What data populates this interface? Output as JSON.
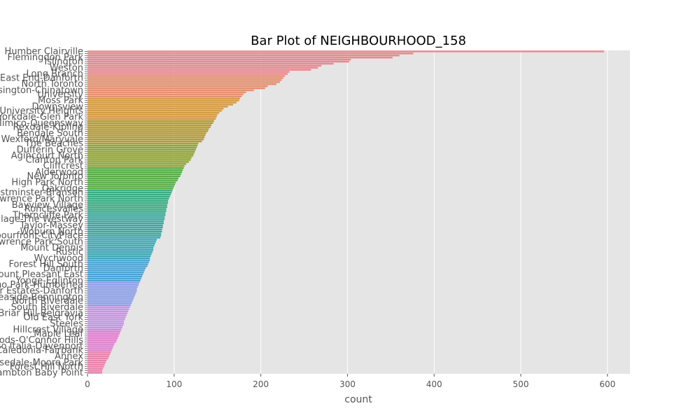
{
  "chart_data": {
    "type": "bar",
    "orientation": "horizontal",
    "title": "Bar Plot of NEIGHBOURHOOD_158",
    "xlabel": "count",
    "ylabel": "",
    "xlim": [
      0,
      626
    ],
    "xticks": [
      0,
      100,
      200,
      300,
      400,
      500,
      600
    ],
    "grid": true,
    "legend": "none",
    "visible_category_labels": [
      "Humber Clairville",
      "Flemingdon Park",
      "Islington",
      "Weston",
      "Long Branch",
      "East End-Danforth",
      "North Toronto",
      "Kensington-Chinatown",
      "University",
      "Moss Park",
      "Downsview",
      "York University Heights",
      "Yorkdale-Glen Park",
      "Mimico-Queensway",
      "Rexdale-Kipling",
      "Bendale South",
      "Wexford/Maryvale",
      "The Beaches",
      "Dufferin Grove",
      "Agincourt North",
      "Clanton Park",
      "Cliffcrest",
      "Alderwood",
      "New Toronto",
      "High Park North",
      "Oakridge",
      "Westminster-Branson",
      "Lawrence Park North",
      "Bayview Village",
      "Roncesvalles",
      "Thorncliffe Park",
      "Kingsview Village-The Westway",
      "Taylor-Massey",
      "Woburn North",
      "Harbourfront-CityPlace",
      "Lawrence Park South",
      "Mount Dennis",
      "Rustic",
      "Wychwood",
      "Forest Hill South",
      "Danforth",
      "Mount Pleasant East",
      "Yonge-Eglinton",
      "Pelmo Park-Humberlea",
      "Playter Estates-Danforth",
      "Leaside-Bennington",
      "North Riverdale",
      "South Riverdale",
      "Briar Hill-Belgravia",
      "Old East York",
      "Steeles",
      "Hillcrest Village",
      "Maple Leaf",
      "Parkwoods-O'Connor Hills",
      "Corso Italia-Davenport",
      "Caledonia-Fairbank",
      "Annex",
      "Rosedale-Moore Park",
      "Forest Hill North",
      "Lambton Baby Point"
    ],
    "category_count": 158,
    "values": [
      596,
      376,
      360,
      352,
      304,
      302,
      284,
      270,
      266,
      258,
      233,
      231,
      228,
      226,
      224,
      222,
      218,
      208,
      205,
      192,
      183,
      180,
      178,
      176,
      175,
      172,
      168,
      162,
      157,
      155,
      152,
      150,
      149,
      148,
      146,
      145,
      143,
      142,
      140,
      139,
      137,
      136,
      135,
      134,
      132,
      128,
      127,
      126,
      125,
      124,
      123,
      122,
      120,
      119,
      117,
      114,
      112,
      111,
      110,
      109,
      108,
      107,
      105,
      104,
      102,
      101,
      100,
      99,
      98,
      97,
      96,
      95,
      94,
      93,
      93,
      92,
      92,
      91,
      91,
      90,
      90,
      89,
      89,
      88,
      88,
      87,
      87,
      86,
      86,
      85,
      85,
      84,
      80,
      79,
      78,
      77,
      76,
      76,
      75,
      74,
      73,
      72,
      72,
      71,
      70,
      69,
      67,
      66,
      65,
      64,
      63,
      62,
      61,
      60,
      59,
      58,
      57,
      57,
      56,
      55,
      54,
      53,
      52,
      51,
      50,
      49,
      48,
      47,
      46,
      45,
      44,
      43,
      42,
      42,
      41,
      40,
      39,
      38,
      37,
      36,
      35,
      34,
      33,
      31,
      30,
      29,
      28,
      27,
      26,
      25,
      24,
      22,
      21,
      20,
      19,
      18,
      17,
      17
    ],
    "palette": [
      "#e8888f",
      "#e48f6e",
      "#d49a3f",
      "#b39b2f",
      "#8fa531",
      "#56ad45",
      "#3aab83",
      "#3aa99c",
      "#3ca7b6",
      "#4aa3d3",
      "#8a9fe6",
      "#c494e6",
      "#e07fd1",
      "#e882ac"
    ]
  }
}
